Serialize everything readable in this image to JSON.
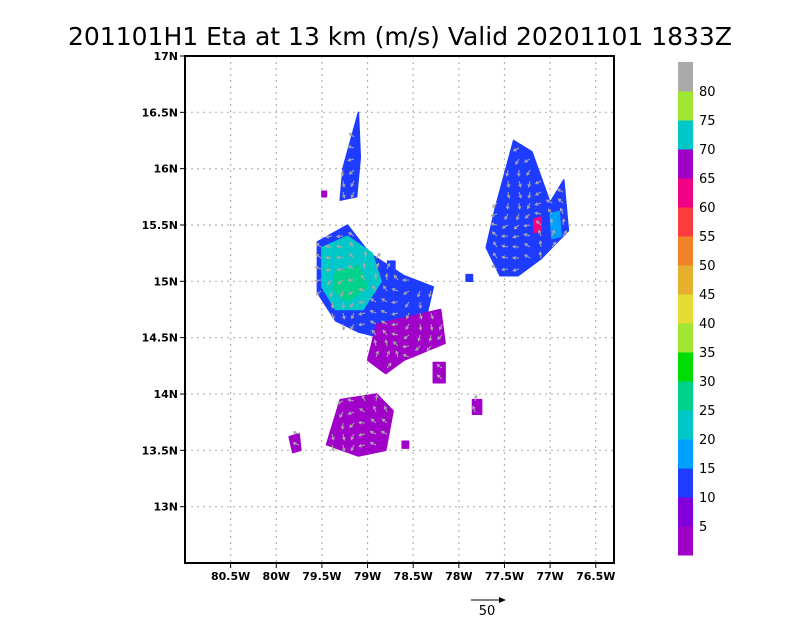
{
  "chart_data": {
    "type": "heatmap",
    "title": "201101H1 Eta at 13 km (m/s) Valid 20201101 1833Z",
    "x_ticks": [
      "80.5W",
      "80W",
      "79.5W",
      "79W",
      "78.5W",
      "78W",
      "77.5W",
      "77W",
      "76.5W"
    ],
    "x_tick_values": [
      -80.5,
      -80.0,
      -79.5,
      -79.0,
      -78.5,
      -78.0,
      -77.5,
      -77.0,
      -76.5
    ],
    "y_ticks": [
      "17N",
      "16.5N",
      "16N",
      "15.5N",
      "15N",
      "14.5N",
      "14N",
      "13.5N",
      "13N"
    ],
    "y_tick_values": [
      17.0,
      16.5,
      16.0,
      15.5,
      15.0,
      14.5,
      14.0,
      13.5,
      13.0
    ],
    "xlim": [
      -81.0,
      -76.3
    ],
    "ylim": [
      12.5,
      17.0
    ],
    "grid": true,
    "colorbar": {
      "labels": [
        "5",
        "10",
        "15",
        "20",
        "25",
        "30",
        "35",
        "40",
        "45",
        "50",
        "55",
        "60",
        "65",
        "70",
        "75",
        "80"
      ],
      "colors": [
        "#a000c8",
        "#8200dc",
        "#1e3cff",
        "#00a0ff",
        "#00c8c8",
        "#00d28c",
        "#00dc00",
        "#a0e632",
        "#e6dc32",
        "#e6af2d",
        "#f08228",
        "#fa3c3c",
        "#f00082",
        "#a000c8",
        "#00c8c8",
        "#a0e632",
        "#aaaaaa"
      ]
    },
    "regions": [
      {
        "name": "north-streak",
        "color": "#1e3cff",
        "polygon": [
          [
            -79.27,
            16.0
          ],
          [
            -79.1,
            16.5
          ],
          [
            -79.08,
            16.1
          ],
          [
            -79.12,
            15.75
          ],
          [
            -79.3,
            15.72
          ]
        ]
      },
      {
        "name": "central-blue",
        "color": "#1e3cff",
        "polygon": [
          [
            -79.55,
            15.35
          ],
          [
            -79.22,
            15.5
          ],
          [
            -78.98,
            15.25
          ],
          [
            -78.6,
            15.05
          ],
          [
            -78.28,
            14.95
          ],
          [
            -78.38,
            14.6
          ],
          [
            -78.75,
            14.48
          ],
          [
            -79.1,
            14.55
          ],
          [
            -79.35,
            14.65
          ],
          [
            -79.55,
            14.9
          ]
        ]
      },
      {
        "name": "central-cyan",
        "color": "#00c8c8",
        "polygon": [
          [
            -79.5,
            15.3
          ],
          [
            -79.22,
            15.4
          ],
          [
            -78.95,
            15.25
          ],
          [
            -78.85,
            15.0
          ],
          [
            -79.05,
            14.75
          ],
          [
            -79.35,
            14.75
          ],
          [
            -79.5,
            14.95
          ]
        ]
      },
      {
        "name": "central-teal",
        "color": "#00d28c",
        "polygon": [
          [
            -79.35,
            15.08
          ],
          [
            -79.1,
            15.14
          ],
          [
            -79.0,
            14.95
          ],
          [
            -79.22,
            14.82
          ],
          [
            -79.38,
            14.92
          ]
        ]
      },
      {
        "name": "central-purple",
        "color": "#a000c8",
        "polygon": [
          [
            -78.9,
            14.62
          ],
          [
            -78.2,
            14.75
          ],
          [
            -78.15,
            14.45
          ],
          [
            -78.45,
            14.35
          ],
          [
            -78.6,
            14.3
          ],
          [
            -78.8,
            14.18
          ],
          [
            -79.0,
            14.3
          ]
        ]
      },
      {
        "name": "south-blob",
        "color": "#a000c8",
        "polygon": [
          [
            -79.45,
            13.55
          ],
          [
            -79.3,
            13.95
          ],
          [
            -78.9,
            14.0
          ],
          [
            -78.72,
            13.85
          ],
          [
            -78.8,
            13.5
          ],
          [
            -79.1,
            13.45
          ]
        ]
      },
      {
        "name": "west-speck",
        "color": "#a000c8",
        "polygon": [
          [
            -79.86,
            13.62
          ],
          [
            -79.75,
            13.65
          ],
          [
            -79.73,
            13.5
          ],
          [
            -79.82,
            13.48
          ]
        ]
      },
      {
        "name": "ne-blue",
        "color": "#1e3cff",
        "polygon": [
          [
            -77.6,
            15.65
          ],
          [
            -77.4,
            16.25
          ],
          [
            -77.2,
            16.15
          ],
          [
            -77.0,
            15.7
          ],
          [
            -76.85,
            15.9
          ],
          [
            -76.8,
            15.45
          ],
          [
            -77.1,
            15.2
          ],
          [
            -77.35,
            15.05
          ],
          [
            -77.55,
            15.05
          ],
          [
            -77.7,
            15.3
          ]
        ]
      },
      {
        "name": "ne-cyan",
        "color": "#00a0ff",
        "polygon": [
          [
            -77.0,
            15.6
          ],
          [
            -76.9,
            15.62
          ],
          [
            -76.88,
            15.4
          ],
          [
            -76.98,
            15.38
          ]
        ]
      },
      {
        "name": "ne-magenta",
        "color": "#f00082",
        "polygon": [
          [
            -77.18,
            15.55
          ],
          [
            -77.1,
            15.57
          ],
          [
            -77.1,
            15.45
          ],
          [
            -77.18,
            15.43
          ]
        ]
      },
      {
        "name": "small-east-1",
        "color": "#a000c8",
        "polygon": [
          [
            -78.28,
            14.28
          ],
          [
            -78.15,
            14.28
          ],
          [
            -78.15,
            14.1
          ],
          [
            -78.28,
            14.1
          ]
        ]
      },
      {
        "name": "small-east-2",
        "color": "#a000c8",
        "polygon": [
          [
            -77.85,
            13.95
          ],
          [
            -77.75,
            13.95
          ],
          [
            -77.75,
            13.82
          ],
          [
            -77.85,
            13.82
          ]
        ]
      },
      {
        "name": "small-east-3",
        "color": "#a000c8",
        "polygon": [
          [
            -78.62,
            13.58
          ],
          [
            -78.55,
            13.58
          ],
          [
            -78.55,
            13.52
          ],
          [
            -78.62,
            13.52
          ]
        ]
      },
      {
        "name": "speck-center",
        "color": "#1e3cff",
        "polygon": [
          [
            -78.78,
            15.18
          ],
          [
            -78.7,
            15.18
          ],
          [
            -78.7,
            15.1
          ],
          [
            -78.78,
            15.1
          ]
        ]
      },
      {
        "name": "speck-ne",
        "color": "#1e3cff",
        "polygon": [
          [
            -77.92,
            15.06
          ],
          [
            -77.85,
            15.06
          ],
          [
            -77.85,
            15.0
          ],
          [
            -77.92,
            15.0
          ]
        ]
      },
      {
        "name": "speck-north",
        "color": "#a000c8",
        "polygon": [
          [
            -79.5,
            15.8
          ],
          [
            -79.45,
            15.8
          ],
          [
            -79.45,
            15.75
          ],
          [
            -79.5,
            15.75
          ]
        ]
      }
    ],
    "vector_key": {
      "label": "50",
      "value": 50
    }
  }
}
